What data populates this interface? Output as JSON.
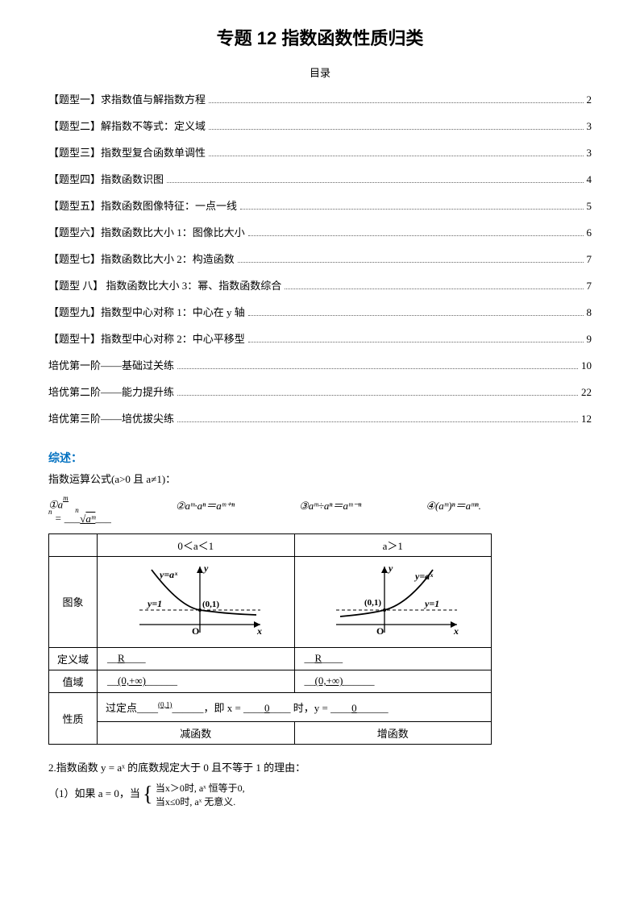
{
  "title": "专题 12  指数函数性质归类",
  "subtitle": "目录",
  "toc": [
    {
      "label": "【题型一】求指数值与解指数方程",
      "page": "2"
    },
    {
      "label": "【题型二】解指数不等式：定义域",
      "page": "3"
    },
    {
      "label": "【题型三】指数型复合函数单调性",
      "page": "3"
    },
    {
      "label": "【题型四】指数函数识图",
      "page": "4"
    },
    {
      "label": "【题型五】指数函数图像特征：一点一线",
      "page": "5"
    },
    {
      "label": "【题型六】指数函数比大小 1：图像比大小",
      "page": "6"
    },
    {
      "label": "【题型七】指数函数比大小 2：构造函数",
      "page": "7"
    },
    {
      "label": "【题型 八】 指数函数比大小 3：幂、指数函数综合",
      "page": "7"
    },
    {
      "label": "【题型九】指数型中心对称 1：中心在 y 轴",
      "page": "8"
    },
    {
      "label": "【题型十】指数型中心对称 2：中心平移型",
      "page": "9"
    },
    {
      "label": "培优第一阶——基础过关练",
      "page": "10"
    },
    {
      "label": "培优第二阶——能力提升练",
      "page": "22"
    },
    {
      "label": "培优第三阶——培优拔尖练",
      "page": "12"
    }
  ],
  "overview_head": "综述：",
  "overview_line": "指数运算公式(a>0 且 a≠1)：",
  "formulas": {
    "f1_pre": "①a",
    "f1_sup": "m/n",
    "f1_mid": " = ___",
    "f1_root": "ⁿ√aᵐ",
    "f1_post": "___",
    "f2": "②aᵐ·aⁿ＝aᵐ⁺ⁿ",
    "f3": "③aᵐ÷aⁿ＝aᵐ⁻ⁿ",
    "f4": "④(aᵐ)ⁿ＝aᵐⁿ."
  },
  "table": {
    "head1": "0＜a＜1",
    "head2": "a＞1",
    "row_graph": "图象",
    "row_domain": "定义域",
    "domain_val": "R",
    "row_range": "值域",
    "range_val": "(0,+∞)",
    "row_prop": "性质",
    "prop_text_pre": "过定点____",
    "prop_point": "(0,1)",
    "prop_text_mid1": "______，即 x = ____",
    "prop_zero1": "0",
    "prop_text_mid2": "____ 时，y = ____",
    "prop_zero2": "0",
    "prop_text_end": "______",
    "dec": "减函数",
    "inc": "增函数",
    "g_y": "y",
    "g_x": "x",
    "g_O": "O",
    "g_fn": "y=aˣ",
    "g_y1": "y=1",
    "g_pt": "(0,1)"
  },
  "footer": {
    "line1": "2.指数函数 y = aˣ 的底数规定大于 0 且不等于 1 的理由：",
    "line2_pre": "（1）如果 a = 0，当",
    "case1": "当x＞0时, aˣ 恒等于0,",
    "case2": "当x≤0时, aˣ 无意义."
  },
  "colors": {
    "heading": "#0070c0",
    "text": "#000000",
    "bg": "#ffffff",
    "dot": "#666666"
  }
}
